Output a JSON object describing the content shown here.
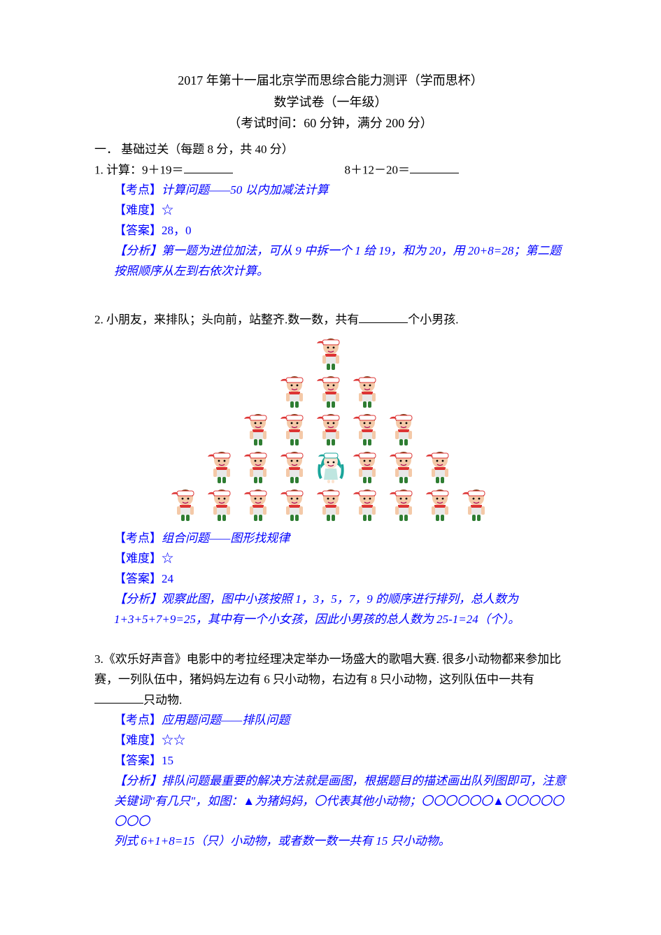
{
  "header": {
    "title1": "2017 年第十一届北京学而思综合能力测评（学而思杯）",
    "title2": "数学试卷（一年级）",
    "title3": "（考试时间：60 分钟，满分 200 分）"
  },
  "section1": {
    "heading": "一．  基础过关（每题 8 分，共 40 分）"
  },
  "q1": {
    "label": "1.  计算：9＋19＝",
    "expr2": "8＋12－20＝",
    "topic_tag": "【考点】",
    "topic": "计算问题——50 以内加减法计算",
    "diff_tag": "【难度】",
    "diff": "☆",
    "ans_tag": "【答案】",
    "ans": "28，0",
    "analysis_tag": "【分析】",
    "analysis": "第一题为进位加法，可从 9 中拆一个 1 给 19，和为 20，用 20+8=28；第二题按照顺序从左到右依次计算。"
  },
  "q2": {
    "stem_a": "2.  小朋友，来排队；头向前，站整齐.数一数，共有",
    "stem_b": "个小男孩.",
    "pyramid_rows": [
      1,
      3,
      5,
      7,
      9
    ],
    "girl_row": 3,
    "girl_index": 3,
    "topic_tag": "【考点】",
    "topic": "组合问题——图形找规律",
    "diff_tag": "【难度】",
    "diff": "☆",
    "ans_tag": "【答案】",
    "ans": "24",
    "analysis_tag": "【分析】",
    "analysis": "观察此图，图中小孩按照 1，3，5，7，9 的顺序进行排列，总人数为 1+3+5+7+9=25，其中有一个小女孩，因此小男孩的总人数为 25-1=24（个）。"
  },
  "q3": {
    "stem_a": "3.《欢乐好声音》电影中的考拉经理决定举办一场盛大的歌唱大赛. 很多小动物都来参加比赛，一列队伍中，猪妈妈左边有 6 只小动物，右边有 8 只小动物，这列队伍中一共有",
    "stem_b": "只动物.",
    "topic_tag": "【考点】",
    "topic": "应用题问题——排队问题",
    "diff_tag": "【难度】",
    "diff": "☆☆",
    "ans_tag": "【答案】",
    "ans": "15",
    "analysis_tag": "【分析】",
    "analysis_a": "排队问题最重要的解决方法就是画图，根据题目的描述画出队列图即可，注意关键词\"有几只\"，如图：▲为猪妈妈，〇代表其他小动物；",
    "analysis_b": "〇〇〇〇〇〇▲〇〇〇〇〇〇〇〇",
    "analysis_c": "列式 6+1+8=15（只）小动物，或者数一数一共有 15 只小动物。"
  },
  "colors": {
    "text": "#000000",
    "accent": "#0000ff",
    "background": "#ffffff"
  }
}
